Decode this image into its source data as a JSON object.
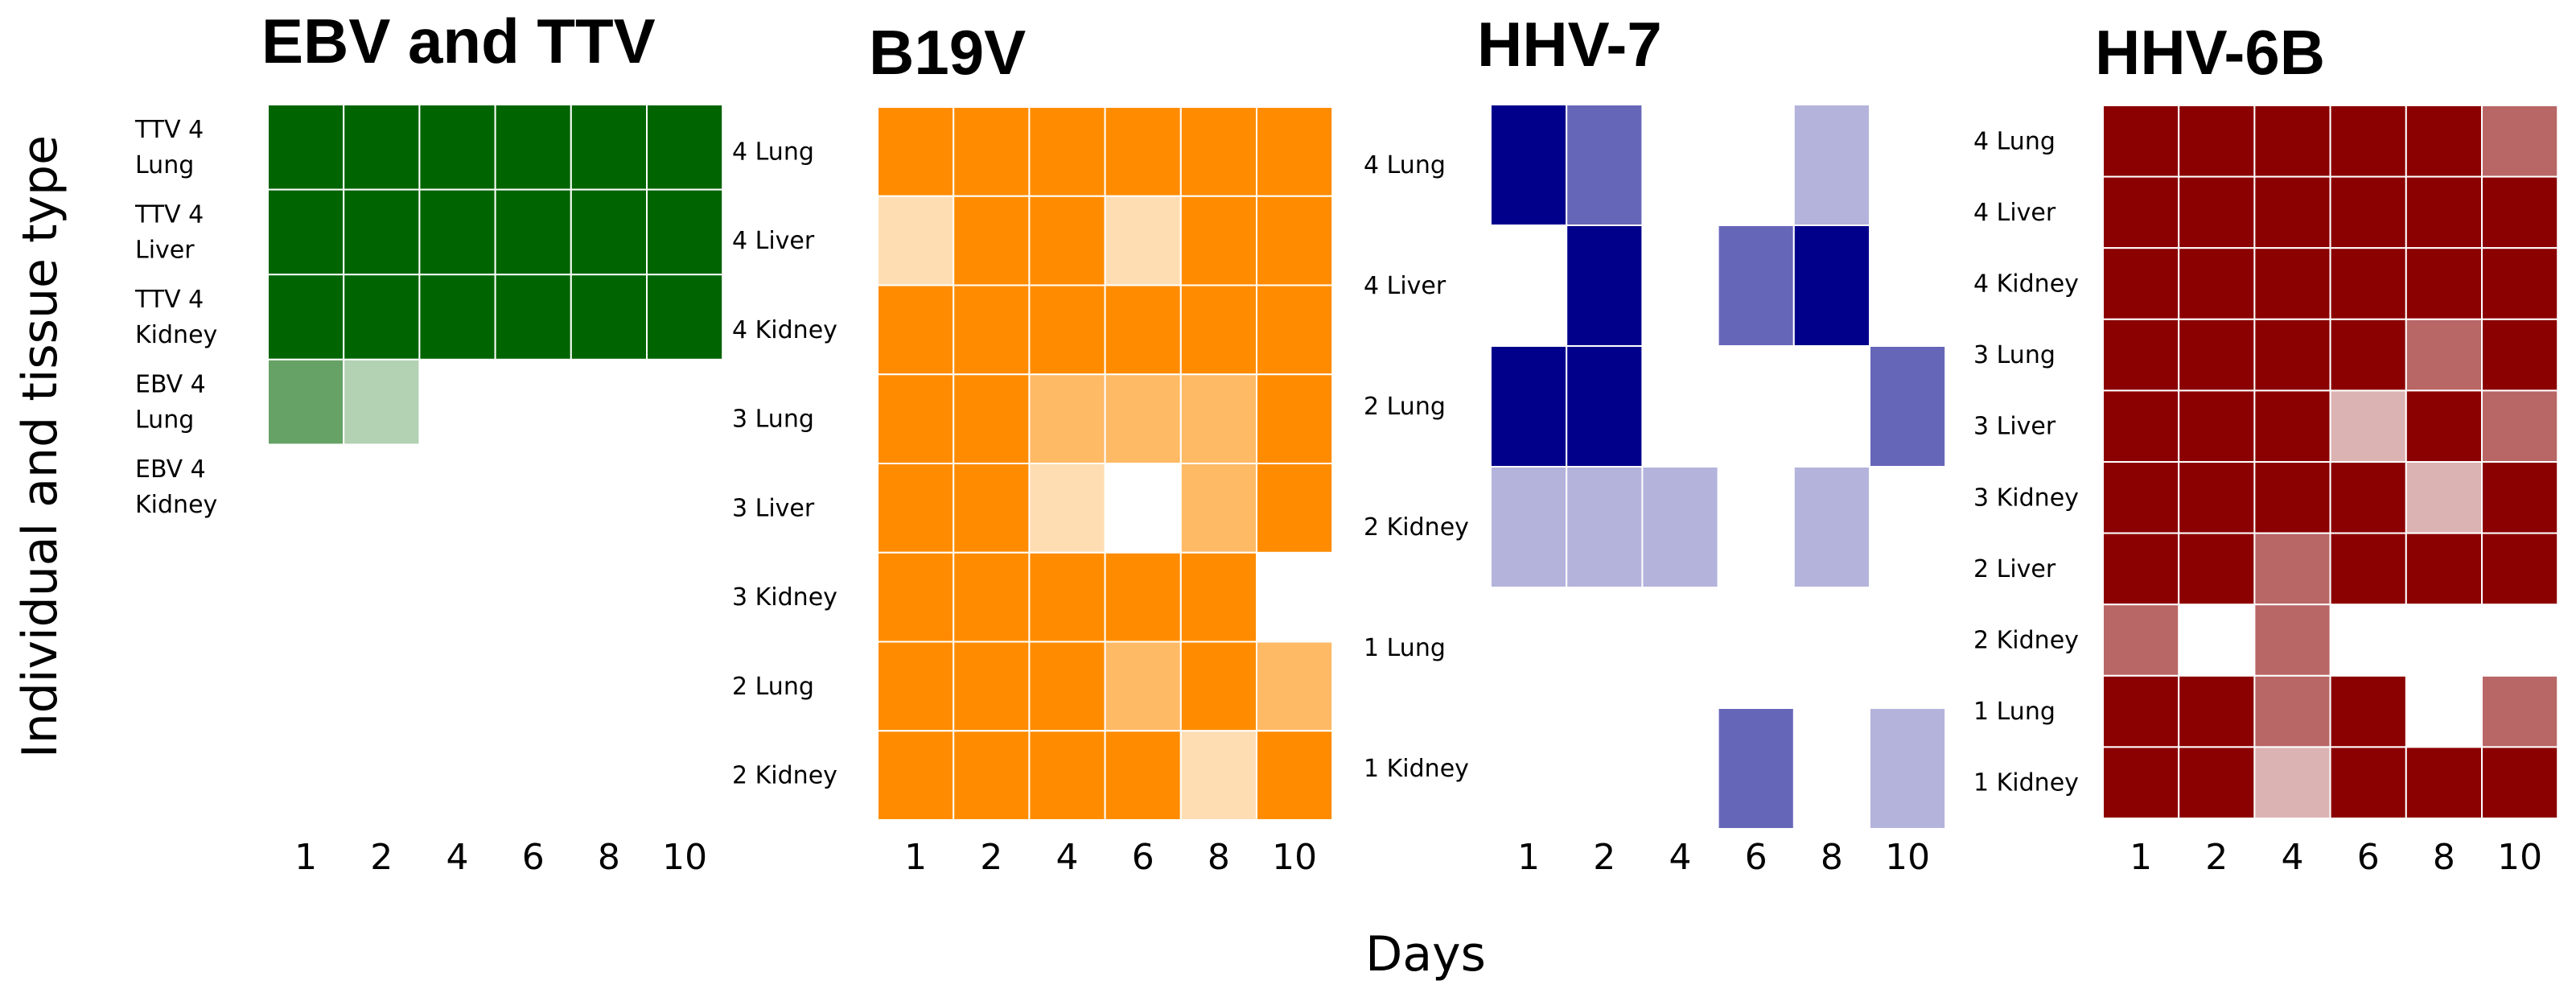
{
  "xlabel": "Days",
  "ylabel": "Individual and tissue type",
  "chart_data": [
    {
      "type": "heatmap",
      "title": "EBV and TTV",
      "color": "#006400",
      "days": [
        "1",
        "2",
        "4",
        "6",
        "8",
        "10"
      ],
      "rows": [
        "TTV 4\nLung",
        "TTV 4\nLiver",
        "TTV 4\nKidney",
        "EBV 4\nLung",
        "EBV 4\nKidney"
      ],
      "values": [
        [
          1,
          1,
          1,
          1,
          1,
          1
        ],
        [
          1,
          1,
          1,
          1,
          1,
          1
        ],
        [
          1,
          1,
          1,
          1,
          1,
          1
        ],
        [
          0.6,
          0.3,
          0,
          0,
          0,
          0
        ],
        [
          0,
          0,
          0,
          0,
          0,
          0
        ]
      ]
    },
    {
      "type": "heatmap",
      "title": "B19V",
      "color": "#FF8C00",
      "days": [
        "1",
        "2",
        "4",
        "6",
        "8",
        "10"
      ],
      "rows": [
        "4 Lung",
        "4 Liver",
        "4 Kidney",
        "3 Lung",
        "3 Liver",
        "3 Kidney",
        "2 Lung",
        "2 Kidney"
      ],
      "values": [
        [
          1,
          1,
          1,
          1,
          1,
          1
        ],
        [
          0.3,
          1,
          1,
          0.3,
          1,
          1
        ],
        [
          1,
          1,
          1,
          1,
          1,
          1
        ],
        [
          1,
          1,
          0.6,
          0.6,
          0.6,
          1
        ],
        [
          1,
          1,
          0.3,
          0,
          0.6,
          1
        ],
        [
          1,
          1,
          1,
          1,
          1,
          0
        ],
        [
          1,
          1,
          1,
          0.6,
          1,
          0.6
        ],
        [
          1,
          1,
          1,
          1,
          0.3,
          1
        ]
      ]
    },
    {
      "type": "heatmap",
      "title": "HHV-7",
      "color": "#00008B",
      "days": [
        "1",
        "2",
        "4",
        "6",
        "8",
        "10"
      ],
      "rows": [
        "4 Lung",
        "4 Liver",
        "2 Lung",
        "2 Kidney",
        "1 Lung",
        "1 Kidney"
      ],
      "values": [
        [
          1,
          0.6,
          0,
          0,
          0.3,
          0
        ],
        [
          0,
          1,
          0,
          0.6,
          1,
          0
        ],
        [
          1,
          1,
          0,
          0,
          0,
          0.6
        ],
        [
          0.3,
          0.3,
          0.3,
          0,
          0.3,
          0
        ],
        [
          0,
          0,
          0,
          0,
          0,
          0
        ],
        [
          0,
          0,
          0,
          0.6,
          0,
          0.3
        ]
      ]
    },
    {
      "type": "heatmap",
      "title": "HHV-6B",
      "color": "#8B0000",
      "days": [
        "1",
        "2",
        "4",
        "6",
        "8",
        "10"
      ],
      "rows": [
        "4 Lung",
        "4 Liver",
        "4 Kidney",
        "3 Lung",
        "3 Liver",
        "3 Kidney",
        "2 Liver",
        "2 Kidney",
        "1 Lung",
        "1 Kidney"
      ],
      "values": [
        [
          1,
          1,
          1,
          1,
          1,
          0.6
        ],
        [
          1,
          1,
          1,
          1,
          1,
          1
        ],
        [
          1,
          1,
          1,
          1,
          1,
          1
        ],
        [
          1,
          1,
          1,
          1,
          0.6,
          1
        ],
        [
          1,
          1,
          1,
          0.3,
          1,
          0.6
        ],
        [
          1,
          1,
          1,
          1,
          0.3,
          1
        ],
        [
          1,
          1,
          0.6,
          1,
          1,
          1
        ],
        [
          0.6,
          0,
          0.6,
          0,
          0,
          0
        ],
        [
          1,
          1,
          0.6,
          1,
          0,
          0.6
        ],
        [
          1,
          1,
          0.3,
          1,
          1,
          1
        ]
      ]
    }
  ]
}
